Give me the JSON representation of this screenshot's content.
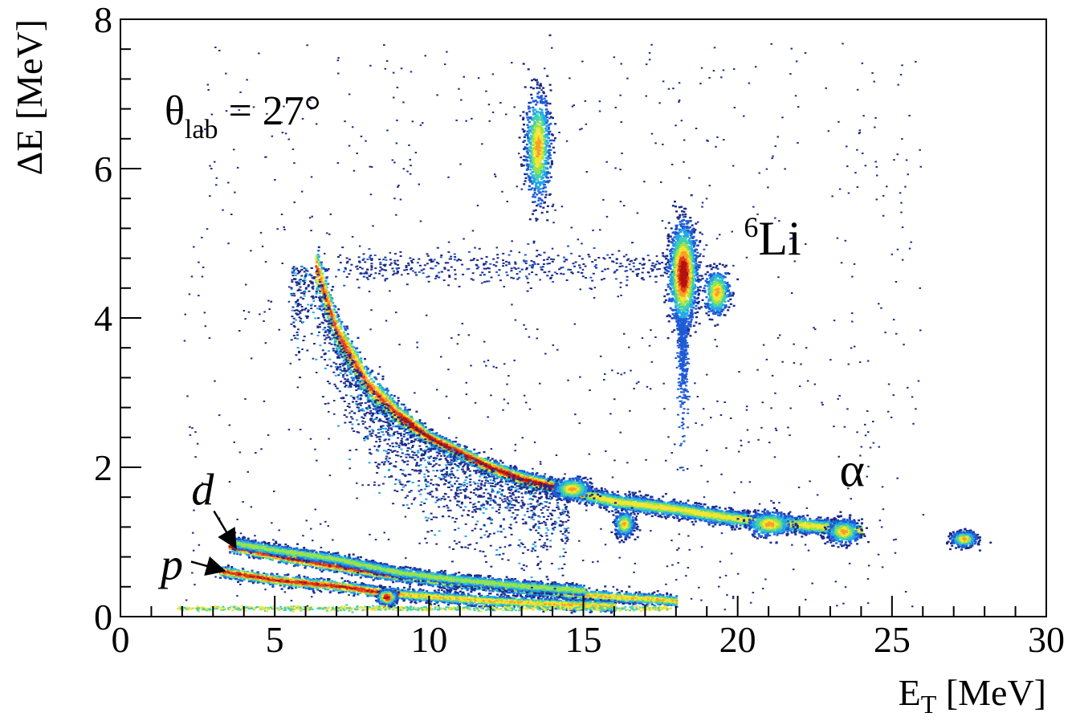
{
  "chart_data": {
    "type": "heatmap",
    "xlabel_main": "E",
    "xlabel_sub": "T",
    "xlabel_unit": " [MeV]",
    "ylabel": "ΔE [MeV]",
    "xlim": [
      0,
      30
    ],
    "ylim": [
      0,
      8
    ],
    "x_ticks": [
      0,
      5,
      10,
      15,
      20,
      25,
      30
    ],
    "y_ticks": [
      0,
      2,
      4,
      6,
      8
    ],
    "x_tick_labels": [
      "0",
      "5",
      "10",
      "15",
      "20",
      "25",
      "30"
    ],
    "y_tick_labels": [
      "0",
      "2",
      "4",
      "6",
      "8"
    ],
    "annotation_theta": {
      "main": "θ",
      "sub": "lab",
      "rest": " = 27°"
    },
    "annotations": [
      {
        "id": "li6",
        "sup": "6",
        "text": "Li",
        "x": 20.2,
        "y": 4.85
      },
      {
        "id": "alpha",
        "text": "α",
        "x": 23.3,
        "y": 1.75
      },
      {
        "id": "deuteron",
        "text": "d",
        "x": 2.3,
        "y": 1.5,
        "arrow_to": [
          3.7,
          0.95
        ]
      },
      {
        "id": "proton",
        "text": "p",
        "x": 1.3,
        "y": 0.5,
        "arrow_to": [
          3.3,
          0.62
        ]
      }
    ],
    "colormap": [
      "#1c2b8a",
      "#1e5bd6",
      "#22a7e8",
      "#3fd1b0",
      "#9ae24a",
      "#f3e534",
      "#f7a125",
      "#e6411e",
      "#b3120f"
    ],
    "loci": [
      {
        "name": "alpha-band",
        "points": [
          [
            6.3,
            4.7
          ],
          [
            7,
            3.8
          ],
          [
            8,
            3.1
          ],
          [
            9,
            2.7
          ],
          [
            10,
            2.4
          ],
          [
            11,
            2.2
          ],
          [
            12,
            2.0
          ],
          [
            13,
            1.85
          ],
          [
            14,
            1.75
          ],
          [
            15,
            1.65
          ],
          [
            16,
            1.55
          ],
          [
            17,
            1.5
          ],
          [
            18,
            1.45
          ],
          [
            19,
            1.38
          ],
          [
            20,
            1.32
          ],
          [
            21,
            1.28
          ],
          [
            22,
            1.24
          ],
          [
            23,
            1.2
          ],
          [
            24,
            1.16
          ]
        ]
      },
      {
        "name": "deuteron-band",
        "points": [
          [
            3.5,
            0.95
          ],
          [
            5,
            0.82
          ],
          [
            7,
            0.68
          ],
          [
            9,
            0.55
          ],
          [
            11,
            0.45
          ],
          [
            13,
            0.38
          ],
          [
            15,
            0.3
          ],
          [
            17,
            0.25
          ],
          [
            18,
            0.22
          ]
        ]
      },
      {
        "name": "proton-band",
        "points": [
          [
            3.2,
            0.62
          ],
          [
            5,
            0.5
          ],
          [
            7,
            0.42
          ],
          [
            8.5,
            0.33
          ],
          [
            10,
            0.28
          ],
          [
            12,
            0.22
          ],
          [
            14,
            0.18
          ],
          [
            16,
            0.15
          ]
        ]
      },
      {
        "name": "triton-band",
        "points": [
          [
            3.6,
            1.0
          ],
          [
            5,
            0.9
          ],
          [
            7,
            0.78
          ],
          [
            9,
            0.6
          ],
          [
            11,
            0.5
          ],
          [
            13,
            0.42
          ],
          [
            15,
            0.36
          ]
        ]
      }
    ],
    "clusters": [
      {
        "name": "li6-peak",
        "x": 18.2,
        "y": 4.6,
        "sx": 0.22,
        "sy": 0.32
      },
      {
        "name": "li6-neighbor",
        "x": 19.3,
        "y": 4.35,
        "sx": 0.2,
        "sy": 0.15
      },
      {
        "name": "upper-cluster",
        "x": 13.5,
        "y": 6.3,
        "sx": 0.2,
        "sy": 0.35
      },
      {
        "name": "alpha-peak-14.5",
        "x": 14.6,
        "y": 1.72,
        "sx": 0.3,
        "sy": 0.07
      },
      {
        "name": "alpha-peak-16",
        "x": 16.3,
        "y": 1.25,
        "sx": 0.15,
        "sy": 0.08
      },
      {
        "name": "alpha-peak-21",
        "x": 21.0,
        "y": 1.25,
        "sx": 0.35,
        "sy": 0.08
      },
      {
        "name": "alpha-peak-23.4",
        "x": 23.4,
        "y": 1.15,
        "sx": 0.25,
        "sy": 0.08
      },
      {
        "name": "peak-27",
        "x": 27.3,
        "y": 1.05,
        "sx": 0.2,
        "sy": 0.05
      },
      {
        "name": "proton-peak-8.6",
        "x": 8.6,
        "y": 0.27,
        "sx": 0.15,
        "sy": 0.05
      }
    ]
  }
}
